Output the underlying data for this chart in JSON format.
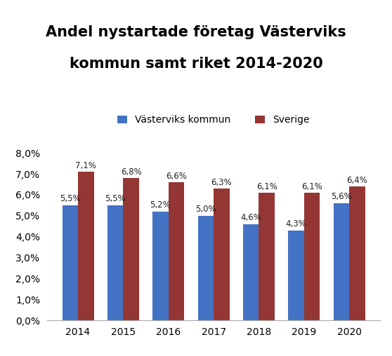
{
  "title_line1": "Andel nystartade företag Västerviks",
  "title_line2": "kommun samt riket 2014-2020",
  "years": [
    2014,
    2015,
    2016,
    2017,
    2018,
    2019,
    2020
  ],
  "vasterviks": [
    0.055,
    0.055,
    0.052,
    0.05,
    0.046,
    0.043,
    0.056
  ],
  "sverige": [
    0.071,
    0.068,
    0.066,
    0.063,
    0.061,
    0.061,
    0.064
  ],
  "vasterviks_labels": [
    "5,5%",
    "5,5%",
    "5,2%",
    "5,0%",
    "4,6%",
    "4,3%",
    "5,6%"
  ],
  "sverige_labels": [
    "7,1%",
    "6,8%",
    "6,6%",
    "6,3%",
    "6,1%",
    "6,1%",
    "6,4%"
  ],
  "color_vasterviks": "#4472C4",
  "color_sverige": "#943634",
  "legend_vasterviks": "Västerviks kommun",
  "legend_sverige": "Sverige",
  "ylim": [
    0,
    0.085
  ],
  "yticks": [
    0.0,
    0.01,
    0.02,
    0.03,
    0.04,
    0.05,
    0.06,
    0.07,
    0.08
  ],
  "background_color": "#ffffff",
  "bar_width": 0.35,
  "label_fontsize": 8.5,
  "title_fontsize": 15,
  "legend_fontsize": 10,
  "tick_fontsize": 10
}
